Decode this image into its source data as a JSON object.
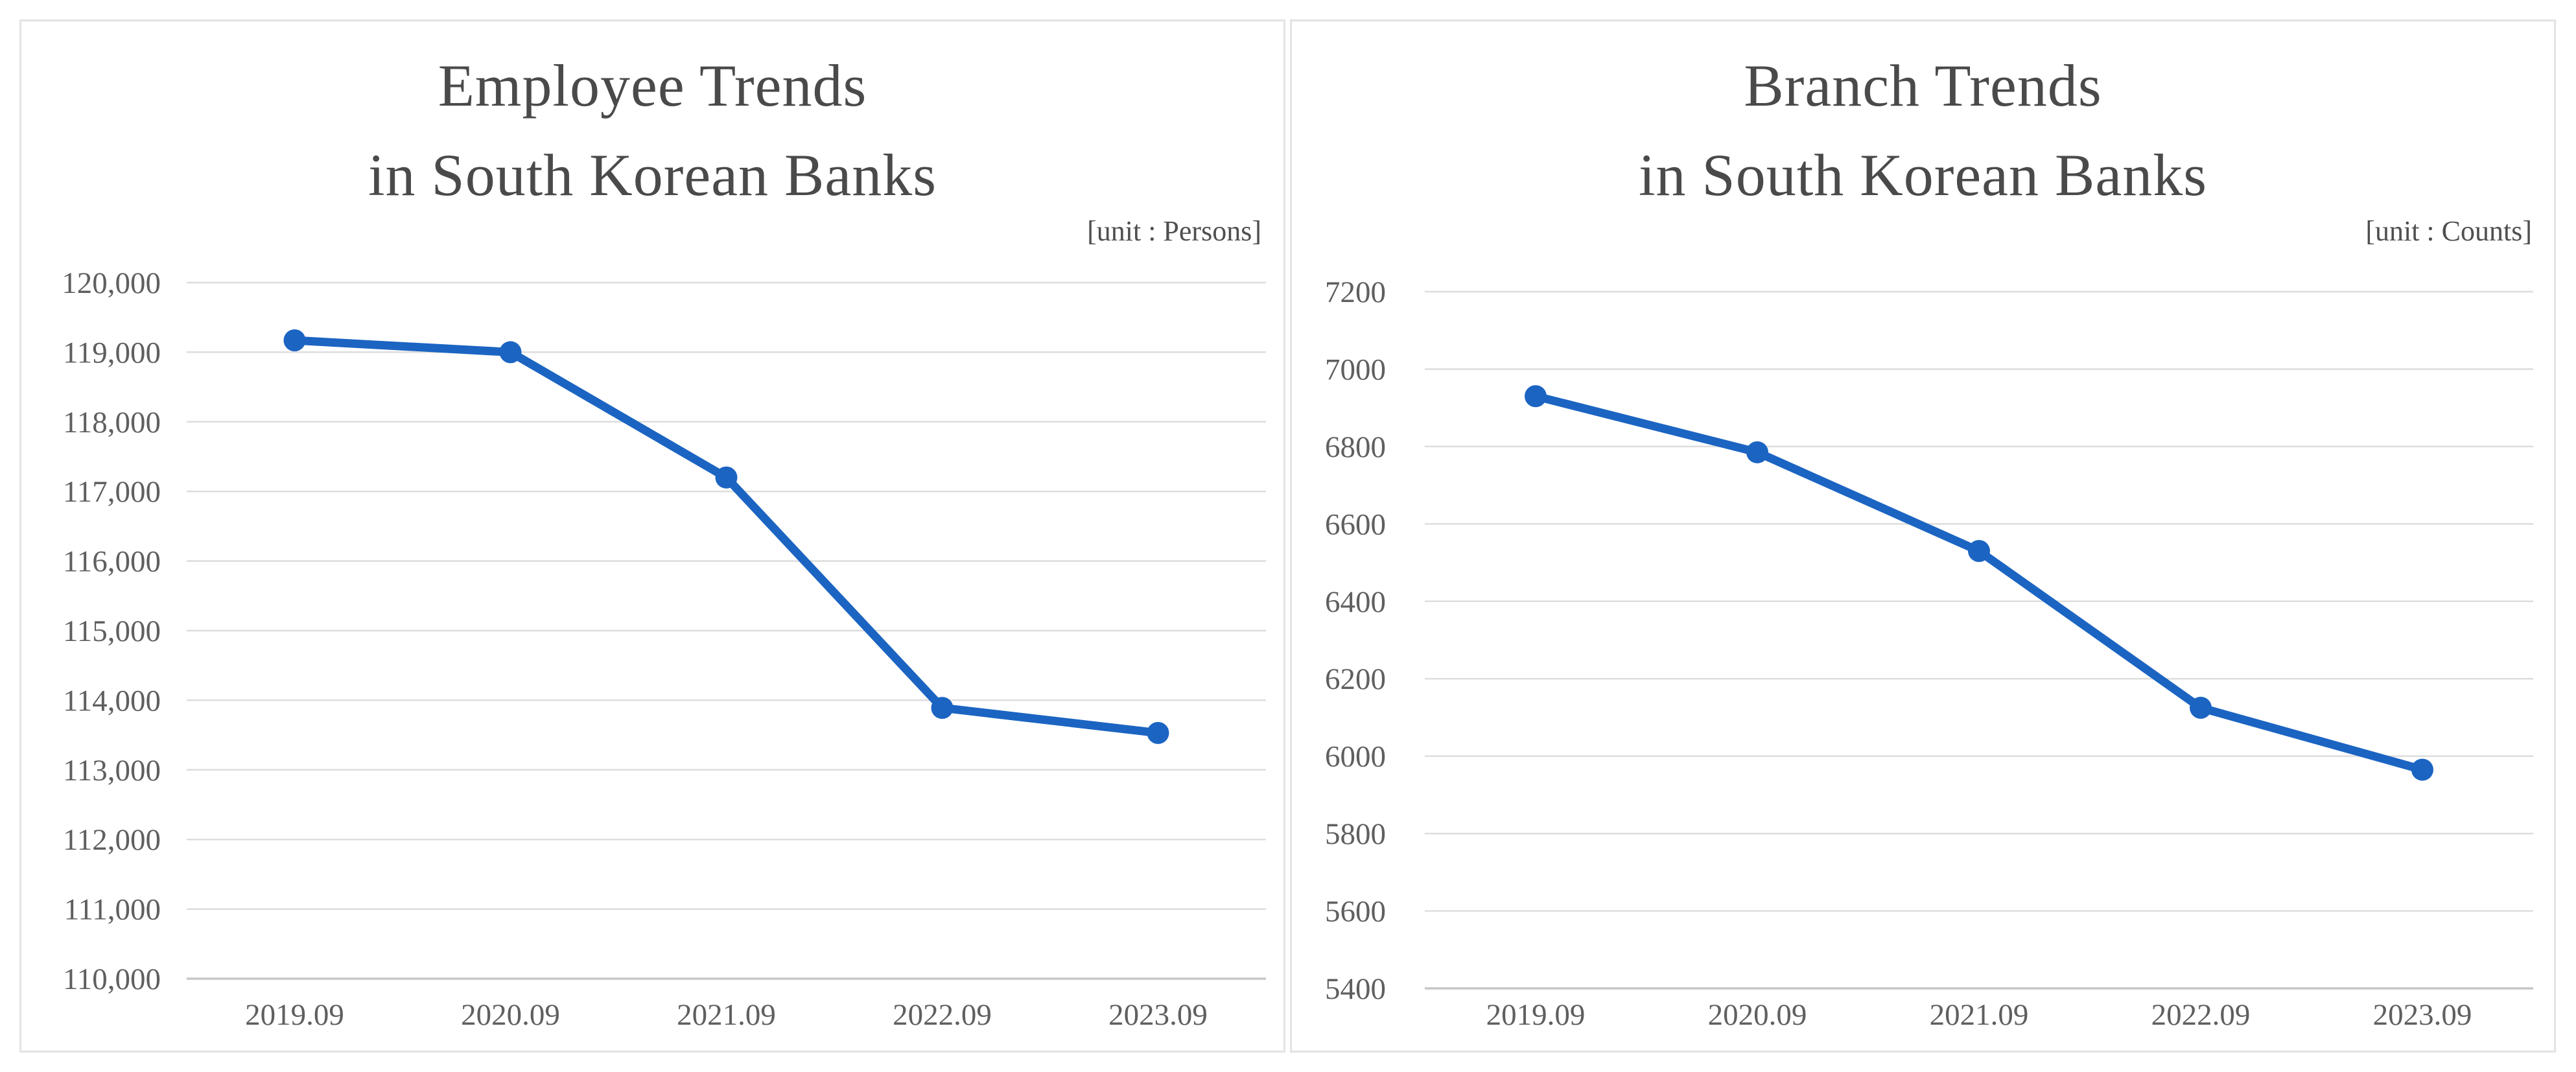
{
  "chart_data": [
    {
      "type": "line",
      "title": "Employee Trends in South Korean Banks",
      "title_line1": "Employee Trends",
      "title_line2": "in South Korean Banks",
      "unit_label": "[unit : Persons]",
      "categories": [
        "2019.09",
        "2020.09",
        "2021.09",
        "2022.09",
        "2023.09"
      ],
      "values": [
        119170,
        119000,
        117200,
        113890,
        113530
      ],
      "ylim": [
        110000,
        120000
      ],
      "ytick_step": 1000,
      "ytick_comma": true,
      "grid": true,
      "legend": "none",
      "line_color": "#1b64c2",
      "marker": "circle",
      "label_color": "#5f5f5f",
      "gridline_color": "#dddddd"
    },
    {
      "type": "line",
      "title": "Branch Trends in South Korean Banks",
      "title_line1": "Branch Trends",
      "title_line2": "in South Korean Banks",
      "unit_label": "[unit : Counts]",
      "categories": [
        "2019.09",
        "2020.09",
        "2021.09",
        "2022.09",
        "2023.09"
      ],
      "values": [
        6930,
        6785,
        6530,
        6125,
        5965
      ],
      "ylim": [
        5400,
        7200
      ],
      "ytick_step": 200,
      "ytick_comma": false,
      "grid": true,
      "legend": "none",
      "line_color": "#1b64c2",
      "marker": "circle",
      "label_color": "#5f5f5f",
      "gridline_color": "#dddddd"
    }
  ]
}
